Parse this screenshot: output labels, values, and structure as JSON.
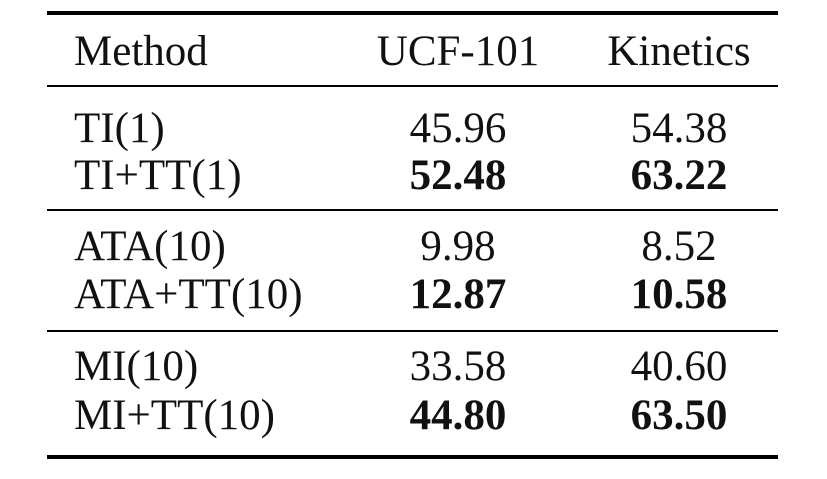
{
  "table": {
    "headers": {
      "method": "Method",
      "ucf": "UCF-101",
      "kinetics": "Kinetics"
    },
    "rows": [
      {
        "method": "TI(1)",
        "ucf": "45.96",
        "kinetics": "54.38",
        "bold": false
      },
      {
        "method": "TI+TT(1)",
        "ucf": "52.48",
        "kinetics": "63.22",
        "bold": true
      },
      {
        "method": "ATA(10)",
        "ucf": "9.98",
        "kinetics": "8.52",
        "bold": false
      },
      {
        "method": "ATA+TT(10)",
        "ucf": "12.87",
        "kinetics": "10.58",
        "bold": true
      },
      {
        "method": "MI(10)",
        "ucf": "33.58",
        "kinetics": "40.60",
        "bold": false
      },
      {
        "method": "MI+TT(10)",
        "ucf": "44.80",
        "kinetics": "63.50",
        "bold": true
      }
    ]
  }
}
